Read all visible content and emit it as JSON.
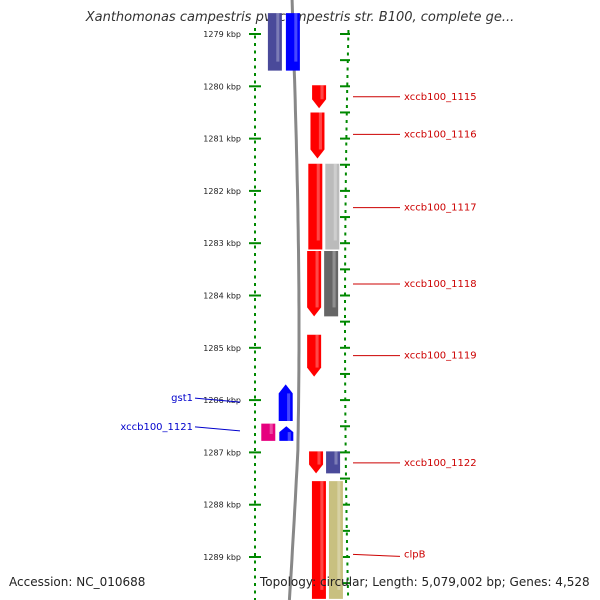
{
  "title": "Xanthomonas campestris pv. campestris str. B100, complete ge...",
  "footer": {
    "accession": "Accession: NC_010688",
    "topology": "Topology: circular;",
    "length": "Length: 5,079,002 bp;",
    "genes": "Genes: 4,528"
  },
  "ticks": [
    {
      "label": "1279 kbp",
      "kbp": 1279
    },
    {
      "label": "1280 kbp",
      "kbp": 1280
    },
    {
      "label": "1281 kbp",
      "kbp": 1281
    },
    {
      "label": "1282 kbp",
      "kbp": 1282
    },
    {
      "label": "1283 kbp",
      "kbp": 1283
    },
    {
      "label": "1284 kbp",
      "kbp": 1284
    },
    {
      "label": "1285 kbp",
      "kbp": 1285
    },
    {
      "label": "1286 kbp",
      "kbp": 1286
    },
    {
      "label": "1287 kbp",
      "kbp": 1287
    },
    {
      "label": "1288 kbp",
      "kbp": 1288
    },
    {
      "label": "1289 kbp",
      "kbp": 1289
    }
  ],
  "features": [
    {
      "name": "inner-purple-a",
      "start": 1278.6,
      "end": 1279.7,
      "track": "inner-2",
      "color": "#4a4a9a",
      "arrow": "none"
    },
    {
      "name": "inner-blue-a",
      "start": 1278.6,
      "end": 1279.7,
      "track": "inner-1",
      "color": "#0000ff",
      "arrow": "none"
    },
    {
      "name": "xccb100_1115",
      "start": 1279.98,
      "end": 1280.42,
      "track": "outer-1",
      "color": "#ff0000",
      "arrow": "down"
    },
    {
      "name": "xccb100_1116",
      "start": 1280.5,
      "end": 1281.38,
      "track": "outer-1",
      "color": "#ff0000",
      "arrow": "down"
    },
    {
      "name": "xccb100_1117",
      "start": 1281.48,
      "end": 1283.12,
      "track": "outer-1",
      "color": "#ff0000",
      "arrow": "none"
    },
    {
      "name": "grey-light",
      "start": 1281.48,
      "end": 1283.12,
      "track": "outer-2",
      "color": "#bbbbbb",
      "arrow": "none"
    },
    {
      "name": "xccb100_1118",
      "start": 1283.15,
      "end": 1284.4,
      "track": "outer-1",
      "color": "#ff0000",
      "arrow": "down"
    },
    {
      "name": "grey-dark",
      "start": 1283.15,
      "end": 1284.4,
      "track": "outer-2",
      "color": "#666666",
      "arrow": "none"
    },
    {
      "name": "xccb100_1119",
      "start": 1284.75,
      "end": 1285.55,
      "track": "outer-1",
      "color": "#ff0000",
      "arrow": "down"
    },
    {
      "name": "gst1",
      "start": 1285.7,
      "end": 1286.4,
      "track": "inner-1",
      "color": "#0000ff",
      "arrow": "up"
    },
    {
      "name": "xccb100_1121",
      "start": 1286.5,
      "end": 1286.78,
      "track": "inner-1",
      "color": "#0000ff",
      "arrow": "up"
    },
    {
      "name": "inner-magenta",
      "start": 1286.45,
      "end": 1286.78,
      "track": "inner-2",
      "color": "#e6007e",
      "arrow": "none"
    },
    {
      "name": "xccb100_1122",
      "start": 1286.98,
      "end": 1287.4,
      "track": "outer-1",
      "color": "#ff0000",
      "arrow": "down"
    },
    {
      "name": "outer-purple-b",
      "start": 1286.98,
      "end": 1287.4,
      "track": "outer-2",
      "color": "#4a4a9a",
      "arrow": "none"
    },
    {
      "name": "clpB",
      "start": 1287.55,
      "end": 1289.8,
      "track": "outer-1",
      "color": "#ff0000",
      "arrow": "none"
    },
    {
      "name": "outer-olive-b",
      "start": 1287.55,
      "end": 1289.8,
      "track": "outer-2",
      "color": "#c8c080",
      "arrow": "none"
    }
  ],
  "labels": [
    {
      "text": "xccb100_1115",
      "kbp": 1280.2,
      "side": "right",
      "color": "#cc0000"
    },
    {
      "text": "xccb100_1116",
      "kbp": 1280.92,
      "side": "right",
      "color": "#cc0000"
    },
    {
      "text": "xccb100_1117",
      "kbp": 1282.32,
      "side": "right",
      "color": "#cc0000"
    },
    {
      "text": "xccb100_1118",
      "kbp": 1283.78,
      "side": "right",
      "color": "#cc0000"
    },
    {
      "text": "xccb100_1119",
      "kbp": 1285.15,
      "side": "right",
      "color": "#cc0000"
    },
    {
      "text": "xccb100_1122",
      "kbp": 1287.2,
      "side": "right",
      "color": "#cc0000"
    },
    {
      "text": "clpB",
      "kbp": 1288.95,
      "side": "right",
      "color": "#cc0000"
    },
    {
      "text": "gst1",
      "kbp": 1286.0,
      "side": "left",
      "color": "#0000cc"
    },
    {
      "text": "xccb100_1121",
      "kbp": 1286.55,
      "side": "left",
      "color": "#0000cc"
    }
  ],
  "colors": {
    "backbone": "#888888",
    "ruler": "#008800",
    "outer_dotted": "#008800"
  }
}
